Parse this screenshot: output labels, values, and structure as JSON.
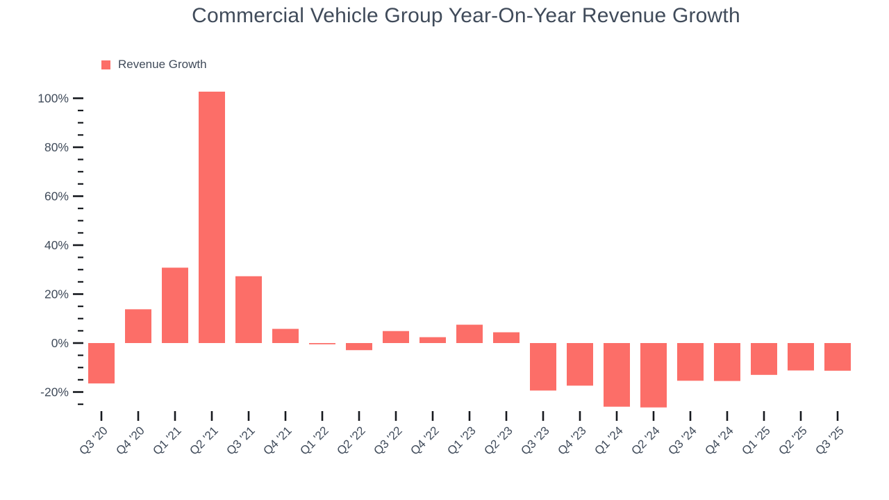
{
  "title": "Commercial Vehicle Group Year-On-Year Revenue Growth",
  "legend": {
    "label": "Revenue Growth",
    "swatch_color": "#fc6e68"
  },
  "colors": {
    "bar": "#fc6e68",
    "text": "#404b5a",
    "tick": "#16191e",
    "background": "#ffffff"
  },
  "chart_data": {
    "type": "bar",
    "title": "Commercial Vehicle Group Year-On-Year Revenue Growth",
    "xlabel": "",
    "ylabel": "",
    "unit": "%",
    "grid": false,
    "legend_position": "top-left",
    "legend_entries": [
      "Revenue Growth"
    ],
    "categories": [
      "Q3 '20",
      "Q4 '20",
      "Q1 '21",
      "Q2 '21",
      "Q3 '21",
      "Q4 '21",
      "Q1 '22",
      "Q2 '22",
      "Q3 '22",
      "Q4 '22",
      "Q1 '23",
      "Q2 '23",
      "Q3 '23",
      "Q4 '23",
      "Q1 '24",
      "Q2 '24",
      "Q3 '24",
      "Q4 '24",
      "Q1 '25",
      "Q2 '25",
      "Q3 '25"
    ],
    "series": [
      {
        "name": "Revenue Growth",
        "values": [
          -16.5,
          13.8,
          30.8,
          102.7,
          27.3,
          5.8,
          -0.5,
          -2.9,
          4.9,
          2.4,
          7.5,
          4.4,
          -19.4,
          -17.4,
          -26.0,
          -26.3,
          -15.4,
          -15.5,
          -13.0,
          -11.2,
          -11.3
        ]
      }
    ],
    "y_ticks": [
      {
        "label": "100%",
        "value": 100
      },
      {
        "label": "80%",
        "value": 80
      },
      {
        "label": "60%",
        "value": 60
      },
      {
        "label": "40%",
        "value": 40
      },
      {
        "label": "20%",
        "value": 20
      },
      {
        "label": "0%",
        "value": 0
      },
      {
        "label": "-20%",
        "value": -20
      }
    ],
    "y_minor_tick_step": 5,
    "ylim": [
      -27,
      104
    ]
  }
}
